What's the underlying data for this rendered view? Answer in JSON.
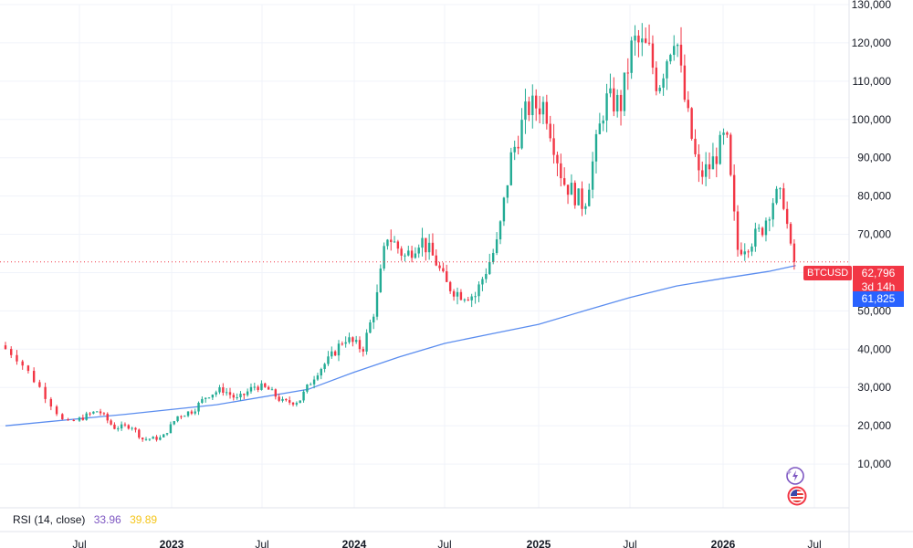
{
  "symbol": "BTCUSD",
  "price_badge": {
    "price": "62,796",
    "countdown": "3d 14h",
    "color": "#f23645"
  },
  "ma_badge": {
    "value": "61,825",
    "color": "#2962ff"
  },
  "rsi": {
    "label": "RSI (14, close)",
    "value1": "33.96",
    "value1_color": "#7e57c2",
    "value2": "39.89",
    "value2_color": "#f5c518"
  },
  "colors": {
    "up": "#22ab94",
    "down": "#f23645",
    "ma": "#5b8def",
    "grid": "#f0f3fa"
  },
  "icons": [
    "sparkle-icon",
    "us-flag-icon"
  ],
  "chart_data": {
    "type": "candlestick",
    "y_axis": {
      "min": 0,
      "max": 130000,
      "ticks": [
        10000,
        20000,
        30000,
        40000,
        50000,
        60000,
        70000,
        80000,
        90000,
        100000,
        110000,
        120000,
        130000
      ],
      "tick_labels": [
        "10,000",
        "20,000",
        "30,000",
        "40,000",
        "50,000",
        "60,000",
        "70,000",
        "80,000",
        "90,000",
        "100,000",
        "110,000",
        "120,000",
        "130,000"
      ]
    },
    "x_axis": {
      "start": "2022-04",
      "end": "2026-07",
      "ticks": [
        {
          "date": "2022-07",
          "label": "Jul",
          "bold": false
        },
        {
          "date": "2023-01",
          "label": "2023",
          "bold": true
        },
        {
          "date": "2023-07",
          "label": "Jul",
          "bold": false
        },
        {
          "date": "2024-01",
          "label": "2024",
          "bold": true
        },
        {
          "date": "2024-07",
          "label": "Jul",
          "bold": false
        },
        {
          "date": "2025-01",
          "label": "2025",
          "bold": true
        },
        {
          "date": "2025-07",
          "label": "Jul",
          "bold": false
        },
        {
          "date": "2026-01",
          "label": "2026",
          "bold": true
        },
        {
          "date": "2026-07",
          "label": "Jul",
          "bold": false
        }
      ]
    },
    "last_price": 62796,
    "moving_average": {
      "series_points": [
        [
          "2022-04-01",
          20000
        ],
        [
          "2022-10-01",
          23000
        ],
        [
          "2023-04-01",
          25500
        ],
        [
          "2023-10-01",
          29500
        ],
        [
          "2024-01-01",
          34000
        ],
        [
          "2024-04-01",
          38000
        ],
        [
          "2024-07-01",
          41500
        ],
        [
          "2024-10-01",
          44000
        ],
        [
          "2025-01-01",
          46500
        ],
        [
          "2025-04-01",
          50000
        ],
        [
          "2025-07-01",
          53500
        ],
        [
          "2025-10-01",
          56500
        ],
        [
          "2026-01-01",
          58500
        ],
        [
          "2026-04-01",
          60300
        ],
        [
          "2026-05-25",
          61825
        ]
      ]
    },
    "price_path": [
      [
        "2022-04-01",
        41000
      ],
      [
        "2022-04-20",
        38500
      ],
      [
        "2022-05-20",
        30000
      ],
      [
        "2022-06-20",
        20500
      ],
      [
        "2022-07-20",
        22500
      ],
      [
        "2022-08-15",
        24000
      ],
      [
        "2022-09-15",
        19500
      ],
      [
        "2022-10-20",
        20000
      ],
      [
        "2022-11-10",
        16500
      ],
      [
        "2022-12-20",
        16800
      ],
      [
        "2023-01-20",
        22500
      ],
      [
        "2023-02-20",
        24000
      ],
      [
        "2023-03-20",
        28000
      ],
      [
        "2023-04-20",
        29500
      ],
      [
        "2023-05-20",
        26800
      ],
      [
        "2023-06-25",
        30500
      ],
      [
        "2023-07-20",
        29500
      ],
      [
        "2023-08-20",
        26000
      ],
      [
        "2023-09-20",
        26500
      ],
      [
        "2023-10-25",
        34000
      ],
      [
        "2023-11-20",
        37500
      ],
      [
        "2023-12-20",
        43000
      ],
      [
        "2024-01-25",
        40000
      ],
      [
        "2024-02-20",
        51500
      ],
      [
        "2024-03-14",
        70000
      ],
      [
        "2024-04-20",
        64000
      ],
      [
        "2024-05-20",
        69000
      ],
      [
        "2024-06-20",
        63000
      ],
      [
        "2024-07-10",
        57000
      ],
      [
        "2024-08-05",
        54500
      ],
      [
        "2024-09-06",
        54000
      ],
      [
        "2024-10-20",
        68000
      ],
      [
        "2024-11-15",
        90000
      ],
      [
        "2024-12-17",
        103000
      ],
      [
        "2025-01-20",
        104000
      ],
      [
        "2025-02-25",
        84000
      ],
      [
        "2025-04-08",
        77500
      ],
      [
        "2025-05-20",
        105000
      ],
      [
        "2025-06-20",
        104000
      ],
      [
        "2025-07-14",
        120500
      ],
      [
        "2025-08-14",
        118000
      ],
      [
        "2025-09-01",
        108500
      ],
      [
        "2025-10-06",
        124000
      ],
      [
        "2025-10-20",
        108000
      ],
      [
        "2025-11-21",
        85000
      ],
      [
        "2025-12-15",
        88000
      ],
      [
        "2026-01-14",
        96000
      ],
      [
        "2026-02-05",
        66000
      ],
      [
        "2026-03-01",
        68000
      ],
      [
        "2026-03-25",
        71000
      ],
      [
        "2026-04-20",
        80000
      ],
      [
        "2026-05-08",
        79000
      ],
      [
        "2026-05-25",
        62796
      ]
    ]
  }
}
